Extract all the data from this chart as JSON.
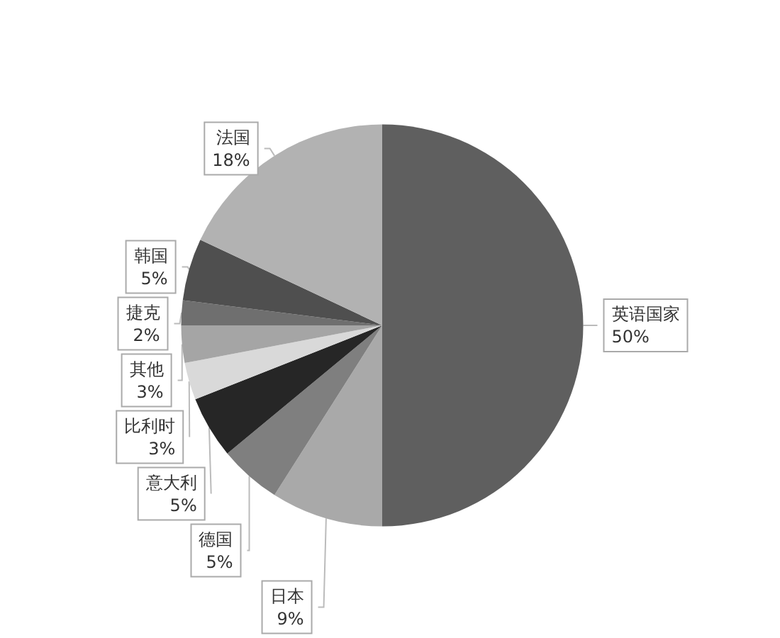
{
  "chart_data": {
    "type": "pie",
    "categories": [
      "英语国家",
      "日本",
      "德国",
      "意大利",
      "比利时",
      "其他",
      "捷克",
      "韩国",
      "法国"
    ],
    "values": [
      50,
      9,
      5,
      5,
      3,
      3,
      2,
      5,
      18
    ],
    "value_labels": [
      "50%",
      "9%",
      "5%",
      "5%",
      "3%",
      "3%",
      "2%",
      "5%",
      "18%"
    ],
    "colors": [
      "#5f5f5f",
      "#a9a9a9",
      "#7f7f7f",
      "#262626",
      "#d9d9d9",
      "#a5a5a5",
      "#6f6f6f",
      "#4f4f4f",
      "#b2b2b2"
    ],
    "legend": false
  }
}
